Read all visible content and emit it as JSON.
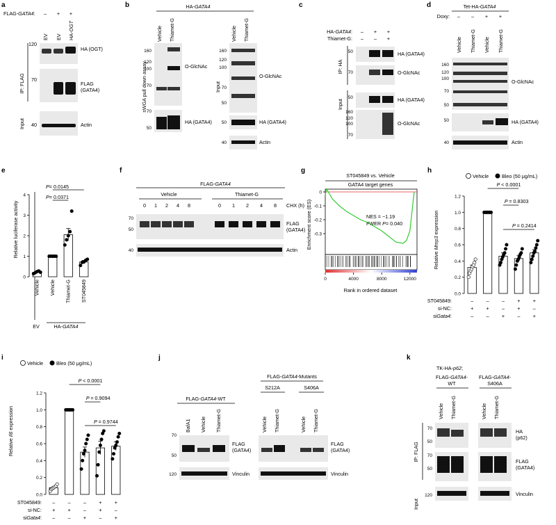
{
  "panels": {
    "a": {
      "letter": "a",
      "header": "FLAG-",
      "header_gene": "GATA4",
      "header_suffix": ":",
      "signs": [
        "–",
        "+",
        "+"
      ],
      "lanes": [
        "EV",
        "EV",
        "HA-"
      ],
      "lane3_gene": "OGT",
      "ip": "IP: FLAG",
      "input": "Input",
      "labels": [
        "HA (OGT)",
        "FLAG",
        "(GATA4)",
        "Actin"
      ],
      "mw": [
        "120",
        "70",
        "40"
      ]
    },
    "b": {
      "letter": "b",
      "header": "HA-",
      "header_gene": "GATA4",
      "lanes": [
        "Vehicle",
        "Thiamet-G"
      ],
      "side_left": "sWGA pull down assay",
      "side_right": "Input",
      "labels": [
        "O-GlcNAc",
        "HA (GATA4)",
        "O-GlcNAc",
        "HA (GATA4)",
        "Actin"
      ],
      "mw_left": [
        "160",
        "120",
        "100",
        "70",
        "70",
        "50"
      ],
      "mw_right": [
        "160",
        "120",
        "100",
        "70",
        "50",
        "50",
        "40"
      ]
    },
    "c": {
      "letter": "c",
      "row1": "HA-",
      "row1_gene": "GATA4",
      "row1_suffix": ":",
      "row2": "Thiamet-G:",
      "signs1": [
        "–",
        "+",
        "+"
      ],
      "signs2": [
        "–",
        "–",
        "+"
      ],
      "ip": "IP: HA",
      "input": "Input",
      "labels": [
        "HA (GATA4)",
        "O-GlcNAc",
        "HA (GATA4)",
        "O-GlcNAc"
      ],
      "mw": [
        "50",
        "70",
        "50",
        "160",
        "120",
        "100",
        "70"
      ]
    },
    "d": {
      "letter": "d",
      "header": "Tet-HA-",
      "header_gene": "GATA4",
      "doxy": "Doxy:",
      "signs": [
        "–",
        "–",
        "+",
        "+"
      ],
      "lanes": [
        "Vehicle",
        "Thiamet-G",
        "Vehicle",
        "Thiamet-G"
      ],
      "labels": [
        "O-GlcNAc",
        "HA (GATA4)",
        "Actin"
      ],
      "mw": [
        "160",
        "120",
        "100",
        "70",
        "50",
        "50",
        "40"
      ]
    },
    "e": {
      "letter": "e",
      "ylabel": "Relative luciferase activity",
      "p1": "= 0.0371",
      "p2": "= 0.0145",
      "ev": "EV",
      "group": "HA-",
      "group_gene": "GATA4"
    },
    "f": {
      "letter": "f",
      "header": "FLAG-",
      "header_gene": "GATA4",
      "groups": [
        "Vehicle",
        "Thiamet-G"
      ],
      "times": [
        "0",
        "1",
        "2",
        "4",
        "8",
        "0",
        "1",
        "2",
        "4",
        "8"
      ],
      "chx": "CHX (h)",
      "labels": [
        "FLAG",
        "(GATA4)",
        "Actin"
      ],
      "mw": [
        "70",
        "50",
        "40"
      ]
    },
    "g": {
      "letter": "g",
      "title": "ST045849 vs. Vehicle",
      "subtitle": "GATA4 target genes",
      "ylabel": "Enrichment score (ES)",
      "xlabel": "Rank in ordered dataset",
      "nes": "NES = −1.19",
      "fwer": "FWER ",
      "fwer_p": "= 0.040"
    },
    "h": {
      "letter": "h",
      "legend_vehicle": "Vehicle",
      "legend_bleo": "Bleo (50 μg/mL)",
      "ylabel_pre": "Relative ",
      "ylabel_gene": "Mmp3",
      "ylabel_post": " expression",
      "p_values": [
        "< 0.0001",
        "= 0.8303",
        "= 0.2414"
      ],
      "row_st": "ST045849:",
      "row_nc": "si-NC:",
      "row_si": "si",
      "row_si_gene": "Gata4",
      "row_si_suffix": ":",
      "signs": [
        [
          "–",
          "–",
          "–",
          "+",
          "+"
        ],
        [
          "+",
          "+",
          "–",
          "+",
          "–"
        ],
        [
          "–",
          "–",
          "+",
          "–",
          "+"
        ]
      ]
    },
    "i": {
      "letter": "i",
      "legend_vehicle": "Vehicle",
      "legend_bleo": "Bleo (50 μg/mL)",
      "ylabel_pre": "Relative ",
      "ylabel_gene": "Il6",
      "ylabel_post": " expression",
      "p_values": [
        "< 0.0001",
        "= 0.9094",
        "= 0.9744"
      ],
      "row_st": "ST045849:",
      "row_nc": "si-NC:",
      "row_si": "si",
      "row_si_gene": "Gata4",
      "row_si_suffix": ":",
      "signs": [
        [
          "–",
          "–",
          "–",
          "+",
          "+"
        ],
        [
          "+",
          "+",
          "–",
          "+",
          "–"
        ],
        [
          "–",
          "–",
          "+",
          "–",
          "+"
        ]
      ]
    },
    "j": {
      "letter": "j",
      "left_header": "FLAG-",
      "left_gene": "GATA4",
      "left_suffix": "-WT",
      "right_header": "FLAG-",
      "right_gene": "GATA4",
      "right_suffix": "-Mutants",
      "mutants": [
        "S212A",
        "S406A"
      ],
      "left_lanes": [
        "BafA1",
        "Vehicle",
        "Thiamet-G"
      ],
      "right_lanes": [
        "Vehicle",
        "Thiamet-G",
        "Vehicle",
        "Thiamet-G"
      ],
      "labels": [
        "FLAG",
        "(GATA4)",
        "FLAG",
        "(GATA4)",
        "Vinculin",
        "Vinculin"
      ],
      "mw": [
        "70",
        "50",
        "120"
      ]
    },
    "k": {
      "letter": "k",
      "header": "TK-HA-",
      "header_gene": "p62",
      "header_suffix": ";",
      "group1a": "FLAG-",
      "group1_gene": "GATA4",
      "group1b": "-",
      "group1c": "WT",
      "group2a": "FLAG-",
      "group2_gene": "GATA4",
      "group2b": "-",
      "group2c": "S406A",
      "lanes": [
        "Vehicle",
        "Thiamet-G",
        "Vehicle",
        "Thiamet-G"
      ],
      "ip": "IP: FLAG",
      "input": "Input",
      "labels": [
        "HA",
        "(p62)",
        "FLAG",
        "(GATA4)",
        "Vinculin"
      ],
      "mw": [
        "70",
        "50",
        "70",
        "50",
        "120"
      ]
    }
  },
  "chart_data": [
    {
      "panel": "e",
      "type": "bar",
      "categories": [
        "Vehicle",
        "Vehicle",
        "Thiamet-G",
        "ST045849"
      ],
      "groups": [
        "EV",
        "HA-GATA4",
        "HA-GATA4",
        "HA-GATA4"
      ],
      "values": [
        0.22,
        1.0,
        2.05,
        0.72
      ],
      "errors": [
        0.04,
        0.0,
        0.3,
        0.08
      ],
      "points": [
        [
          0.15,
          0.2,
          0.25,
          0.28,
          0.22
        ],
        [
          1.0,
          1.0,
          1.0,
          1.0,
          1.0
        ],
        [
          1.55,
          1.8,
          2.0,
          2.2,
          3.2
        ],
        [
          0.55,
          0.7,
          0.72,
          0.8,
          0.85
        ]
      ],
      "ylim": [
        0,
        4
      ],
      "yticks": [
        0,
        1,
        2,
        3,
        4
      ],
      "ylabel": "Relative luciferase activity",
      "annotations": [
        "P = 0.0371",
        "P = 0.0145"
      ]
    },
    {
      "panel": "h",
      "type": "bar",
      "categories": [
        "Vehicle",
        "Bleo",
        "Bleo+siGata4",
        "Bleo+ST045849+si-NC",
        "Bleo+ST045849+siGata4"
      ],
      "values": [
        0.32,
        1.0,
        0.46,
        0.43,
        0.5
      ],
      "errors": [
        0.03,
        0.0,
        0.04,
        0.04,
        0.04
      ],
      "points": [
        [
          0.2,
          0.25,
          0.28,
          0.3,
          0.33,
          0.35,
          0.38,
          0.42
        ],
        [
          1.0,
          1.0,
          1.0,
          1.0,
          1.0,
          1.0,
          1.0,
          1.0
        ],
        [
          0.35,
          0.38,
          0.42,
          0.45,
          0.48,
          0.5,
          0.55,
          0.6
        ],
        [
          0.3,
          0.35,
          0.4,
          0.42,
          0.45,
          0.48,
          0.5,
          0.55
        ],
        [
          0.38,
          0.42,
          0.46,
          0.5,
          0.52,
          0.56,
          0.6,
          0.65
        ]
      ],
      "ylim": [
        0,
        1.2
      ],
      "yticks": [
        0,
        0.2,
        0.4,
        0.6,
        0.8,
        1.0,
        1.2
      ],
      "ylabel": "Relative Mmp3 expression",
      "annotations": [
        "P < 0.0001",
        "P = 0.8303",
        "P = 0.2414"
      ]
    },
    {
      "panel": "i",
      "type": "bar",
      "categories": [
        "Vehicle",
        "Bleo",
        "Bleo+siGata4",
        "Bleo+ST045849+si-NC",
        "Bleo+ST045849+siGata4"
      ],
      "values": [
        0.08,
        1.0,
        0.5,
        0.55,
        0.57
      ],
      "errors": [
        0.01,
        0.0,
        0.06,
        0.08,
        0.05
      ],
      "points": [
        [
          0.04,
          0.06,
          0.07,
          0.08,
          0.09,
          0.1,
          0.12
        ],
        [
          1.0,
          1.0,
          1.0,
          1.0,
          1.0,
          1.0,
          1.0
        ],
        [
          0.3,
          0.4,
          0.48,
          0.52,
          0.6,
          0.65,
          0.7
        ],
        [
          0.22,
          0.35,
          0.5,
          0.58,
          0.65,
          0.72,
          0.75
        ],
        [
          0.42,
          0.48,
          0.55,
          0.58,
          0.62,
          0.68,
          0.72
        ]
      ],
      "ylim": [
        0,
        1.2
      ],
      "yticks": [
        0,
        0.2,
        0.4,
        0.6,
        0.8,
        1.0,
        1.2
      ],
      "ylabel": "Relative Il6 expression",
      "annotations": [
        "P < 0.0001",
        "P = 0.9094",
        "P = 0.9744"
      ]
    },
    {
      "panel": "g",
      "type": "line",
      "x": [
        0,
        200,
        1000,
        2000,
        3000,
        4000,
        5000,
        6000,
        7000,
        8000,
        9000,
        10000,
        11000,
        11500,
        12000,
        12600
      ],
      "y": [
        -0.02,
        0.02,
        -0.05,
        -0.1,
        -0.14,
        -0.17,
        -0.2,
        -0.22,
        -0.25,
        -0.28,
        -0.32,
        -0.36,
        -0.37,
        -0.35,
        -0.28,
        0.0
      ],
      "xlim": [
        0,
        13000
      ],
      "xticks": [
        0,
        4000,
        8000,
        12000
      ],
      "ylim": [
        -0.45,
        0.02
      ],
      "yticks": [
        0,
        -0.1,
        -0.2,
        -0.3
      ],
      "ylabel": "Enrichment score (ES)",
      "xlabel": "Rank in ordered dataset"
    }
  ]
}
